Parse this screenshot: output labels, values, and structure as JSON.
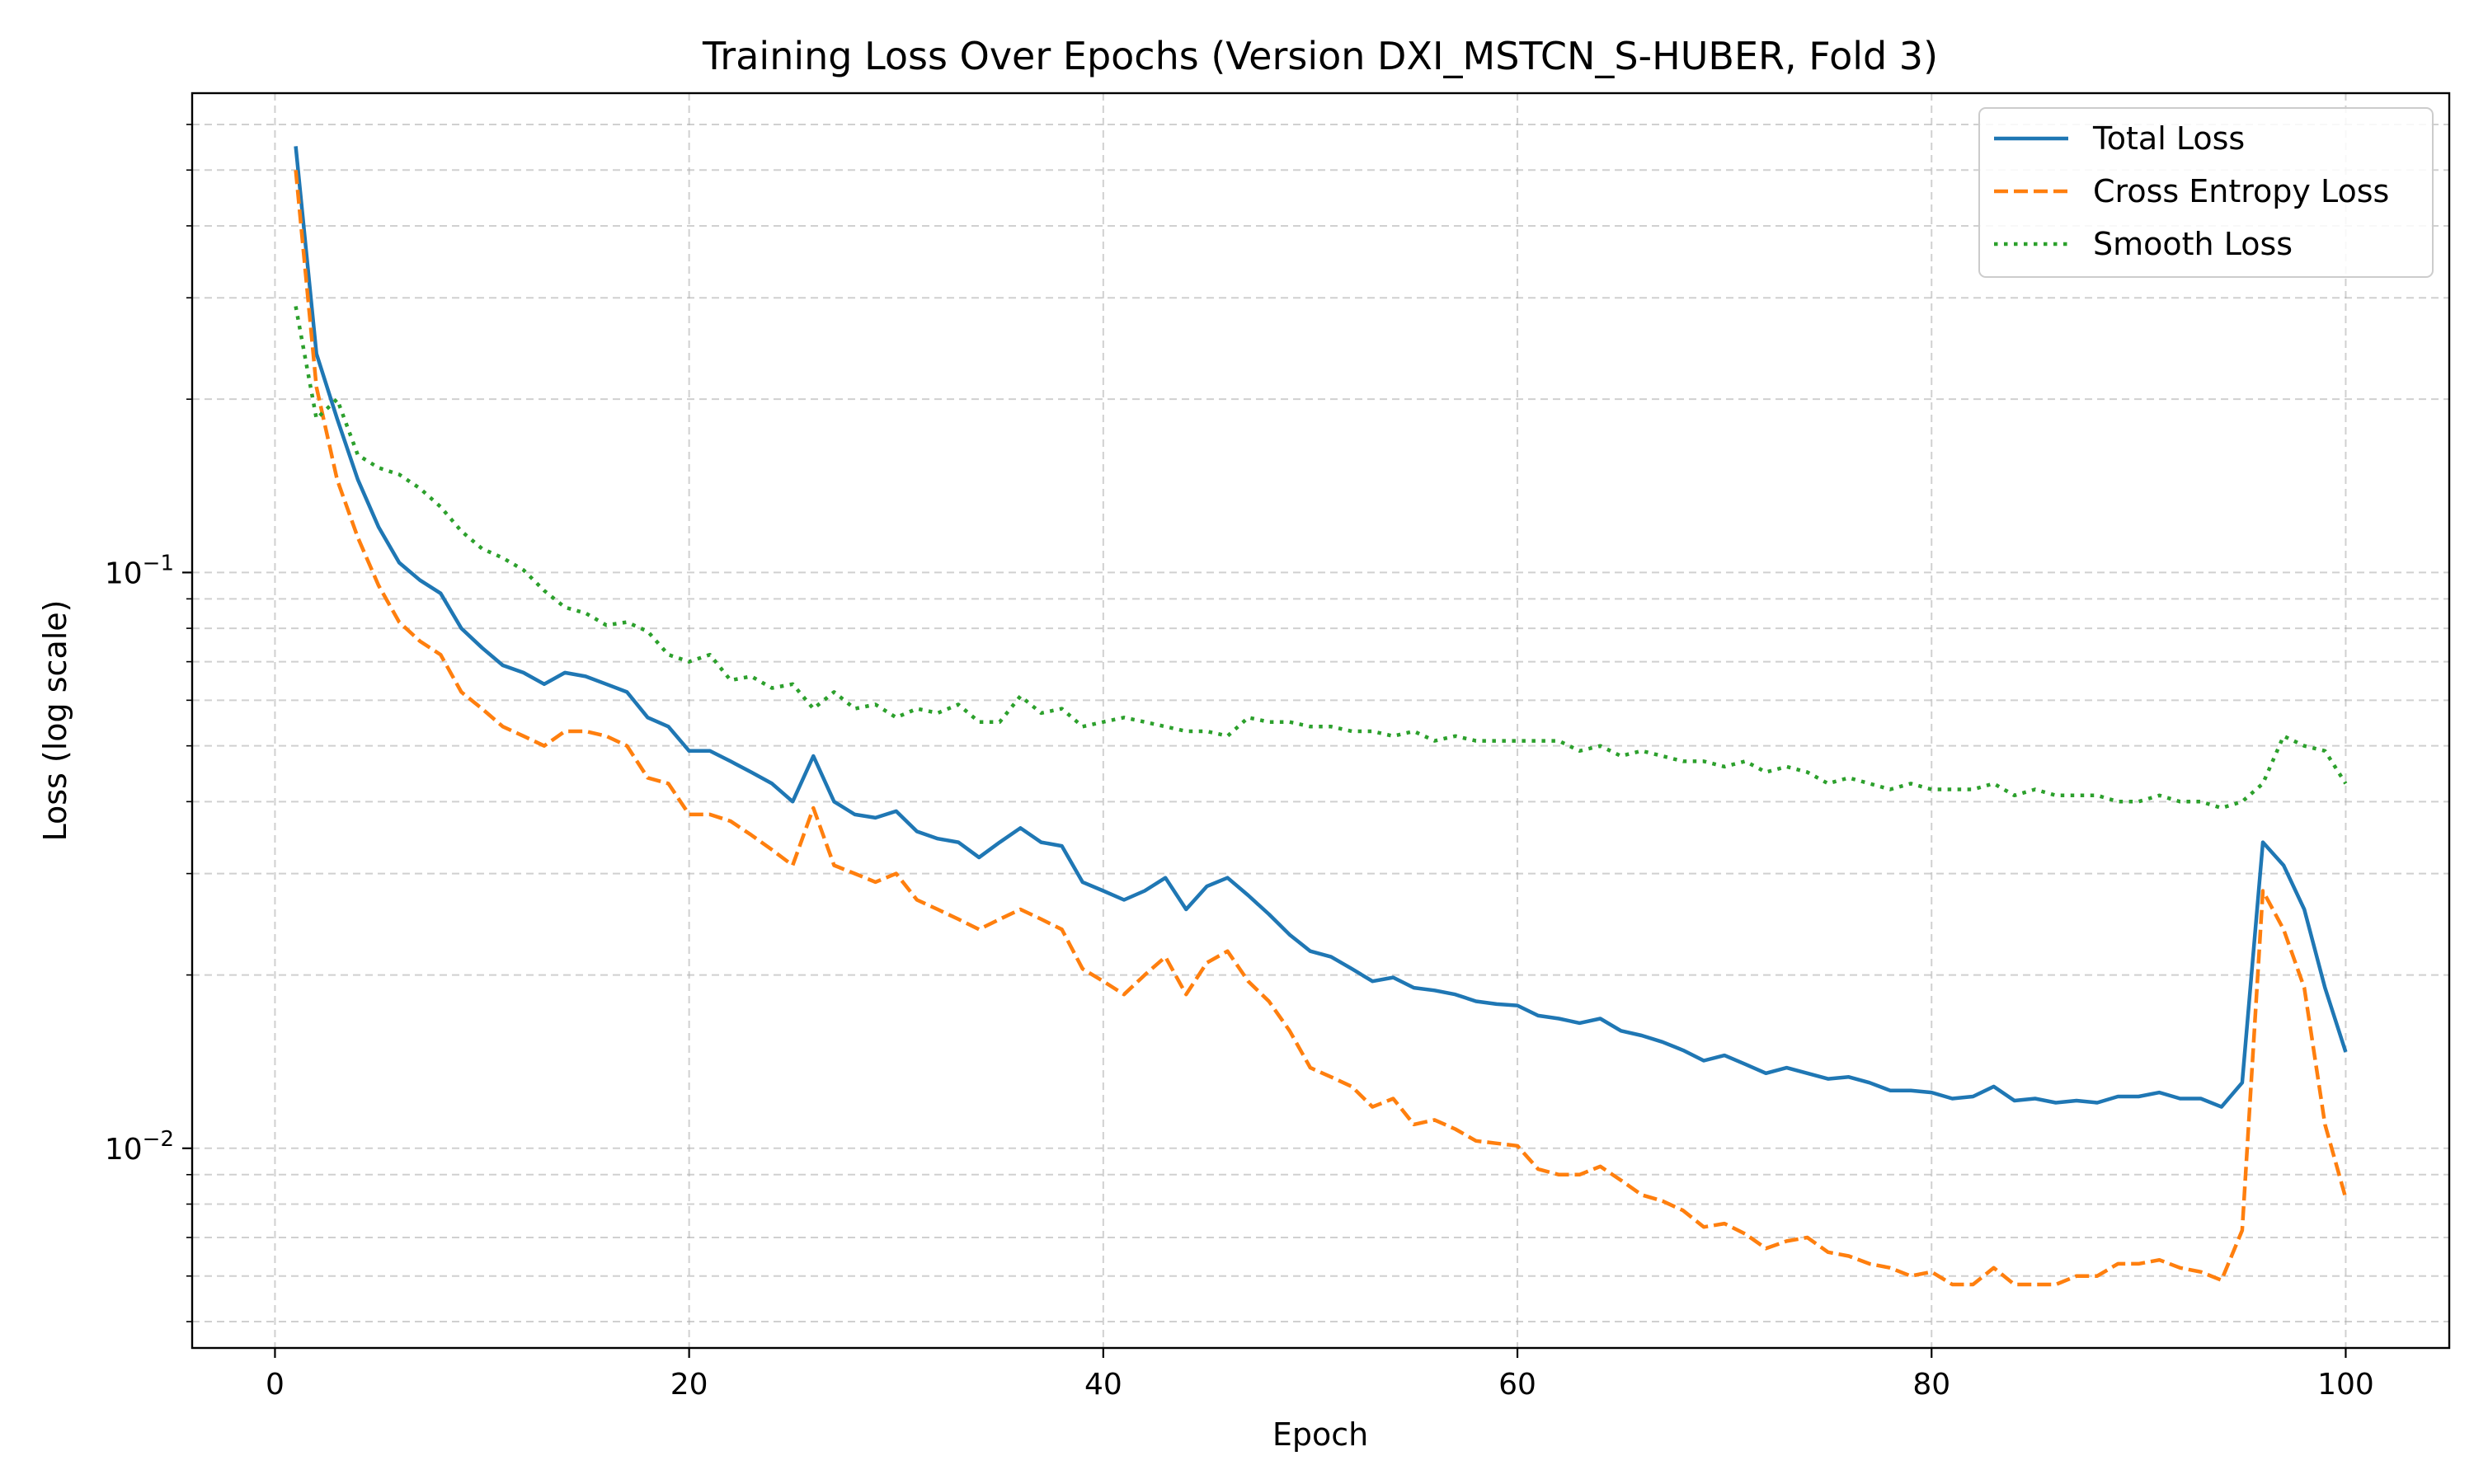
{
  "chart_data": {
    "type": "line",
    "title": "Training Loss Over Epochs (Version DXI_MSTCN_S-HUBER, Fold 3)",
    "xlabel": "Epoch",
    "ylabel": "Loss (log scale)",
    "yscale": "log",
    "xlim": [
      -4,
      105
    ],
    "ylim": [
      0.0045,
      0.68
    ],
    "x_ticks": [
      0,
      20,
      40,
      60,
      80,
      100
    ],
    "y_major_ticks": [
      {
        "value": 0.1,
        "base": "10",
        "exp": "−1"
      },
      {
        "value": 0.01,
        "base": "10",
        "exp": "−2"
      }
    ],
    "grid": true,
    "legend_position": "top-right",
    "x": [
      1,
      2,
      3,
      4,
      5,
      6,
      7,
      8,
      9,
      10,
      11,
      12,
      13,
      14,
      15,
      16,
      17,
      18,
      19,
      20,
      21,
      22,
      23,
      24,
      25,
      26,
      27,
      28,
      29,
      30,
      31,
      32,
      33,
      34,
      35,
      36,
      37,
      38,
      39,
      40,
      41,
      42,
      43,
      44,
      45,
      46,
      47,
      48,
      49,
      50,
      51,
      52,
      53,
      54,
      55,
      56,
      57,
      58,
      59,
      60,
      61,
      62,
      63,
      64,
      65,
      66,
      67,
      68,
      69,
      70,
      71,
      72,
      73,
      74,
      75,
      76,
      77,
      78,
      79,
      80,
      81,
      82,
      83,
      84,
      85,
      86,
      87,
      88,
      89,
      90,
      91,
      92,
      93,
      94,
      95,
      96,
      97,
      98,
      99,
      100
    ],
    "series": [
      {
        "name": "Total Loss",
        "color": "#1f77b4",
        "style": "solid",
        "values": [
          0.55,
          0.24,
          0.185,
          0.145,
          0.12,
          0.104,
          0.097,
          0.092,
          0.08,
          0.074,
          0.069,
          0.067,
          0.064,
          0.067,
          0.066,
          0.064,
          0.062,
          0.056,
          0.054,
          0.049,
          0.049,
          0.047,
          0.045,
          0.043,
          0.04,
          0.048,
          0.04,
          0.038,
          0.0375,
          0.0385,
          0.0355,
          0.0345,
          0.034,
          0.032,
          0.034,
          0.036,
          0.034,
          0.0335,
          0.029,
          0.028,
          0.027,
          0.028,
          0.0295,
          0.026,
          0.0285,
          0.0295,
          0.0275,
          0.0255,
          0.0235,
          0.022,
          0.0215,
          0.0205,
          0.0195,
          0.0198,
          0.019,
          0.0188,
          0.0185,
          0.018,
          0.0178,
          0.0177,
          0.017,
          0.0168,
          0.0165,
          0.0168,
          0.016,
          0.0157,
          0.0153,
          0.0148,
          0.0142,
          0.0145,
          0.014,
          0.0135,
          0.0138,
          0.0135,
          0.0132,
          0.0133,
          0.013,
          0.0126,
          0.0126,
          0.0125,
          0.0122,
          0.0123,
          0.0128,
          0.0121,
          0.0122,
          0.012,
          0.0121,
          0.012,
          0.0123,
          0.0123,
          0.0125,
          0.0122,
          0.0122,
          0.0118,
          0.013,
          0.034,
          0.031,
          0.026,
          0.019,
          0.0147
        ]
      },
      {
        "name": "Cross Entropy Loss",
        "color": "#ff7f0e",
        "style": "dashed",
        "values": [
          0.5,
          0.21,
          0.145,
          0.115,
          0.095,
          0.082,
          0.076,
          0.072,
          0.062,
          0.058,
          0.054,
          0.052,
          0.05,
          0.053,
          0.053,
          0.052,
          0.05,
          0.044,
          0.043,
          0.038,
          0.038,
          0.037,
          0.035,
          0.033,
          0.031,
          0.039,
          0.031,
          0.03,
          0.029,
          0.03,
          0.027,
          0.026,
          0.025,
          0.024,
          0.025,
          0.026,
          0.025,
          0.024,
          0.0205,
          0.0195,
          0.0185,
          0.02,
          0.0215,
          0.0185,
          0.021,
          0.022,
          0.0195,
          0.018,
          0.016,
          0.0138,
          0.0133,
          0.0128,
          0.0118,
          0.0122,
          0.011,
          0.0112,
          0.0108,
          0.0103,
          0.0102,
          0.0101,
          0.0092,
          0.009,
          0.009,
          0.0093,
          0.0088,
          0.0083,
          0.0081,
          0.0078,
          0.0073,
          0.0074,
          0.0071,
          0.0067,
          0.0069,
          0.007,
          0.0066,
          0.0065,
          0.0063,
          0.0062,
          0.006,
          0.0061,
          0.0058,
          0.0058,
          0.0062,
          0.0058,
          0.0058,
          0.0058,
          0.006,
          0.006,
          0.0063,
          0.0063,
          0.0064,
          0.0062,
          0.0061,
          0.0059,
          0.0072,
          0.028,
          0.024,
          0.019,
          0.011,
          0.0082
        ]
      },
      {
        "name": "Smooth Loss",
        "color": "#2ca02c",
        "style": "dotted",
        "values": [
          0.29,
          0.185,
          0.2,
          0.16,
          0.152,
          0.148,
          0.14,
          0.13,
          0.118,
          0.11,
          0.106,
          0.101,
          0.093,
          0.087,
          0.085,
          0.081,
          0.082,
          0.079,
          0.072,
          0.07,
          0.072,
          0.065,
          0.066,
          0.063,
          0.064,
          0.058,
          0.062,
          0.058,
          0.059,
          0.056,
          0.058,
          0.057,
          0.059,
          0.055,
          0.055,
          0.061,
          0.057,
          0.058,
          0.054,
          0.055,
          0.056,
          0.055,
          0.054,
          0.053,
          0.053,
          0.052,
          0.056,
          0.055,
          0.055,
          0.054,
          0.054,
          0.053,
          0.053,
          0.052,
          0.053,
          0.051,
          0.052,
          0.051,
          0.051,
          0.051,
          0.051,
          0.051,
          0.049,
          0.05,
          0.048,
          0.049,
          0.048,
          0.047,
          0.047,
          0.046,
          0.047,
          0.045,
          0.046,
          0.045,
          0.043,
          0.044,
          0.043,
          0.042,
          0.043,
          0.042,
          0.042,
          0.042,
          0.043,
          0.041,
          0.042,
          0.041,
          0.041,
          0.041,
          0.04,
          0.04,
          0.041,
          0.04,
          0.04,
          0.039,
          0.04,
          0.043,
          0.052,
          0.05,
          0.049,
          0.043
        ]
      }
    ]
  }
}
